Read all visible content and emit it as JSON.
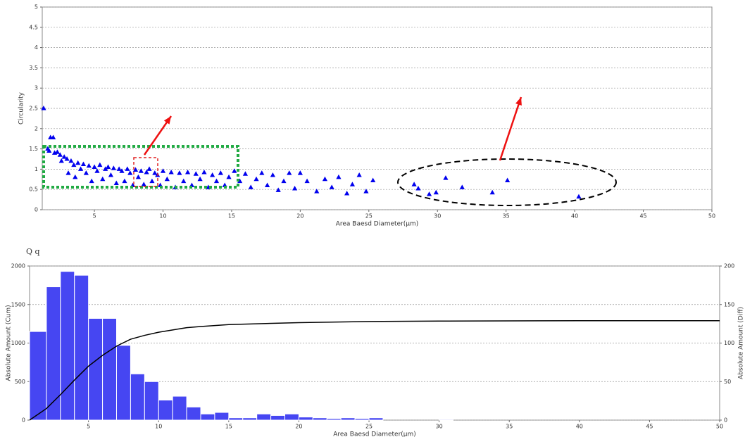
{
  "chart_data": [
    {
      "type": "scatter",
      "x_label": "Area Baesd Diameter(μm)",
      "y_label": "Circularity",
      "color": "#0000ee",
      "grid": true,
      "xlim": [
        1.2,
        50
      ],
      "xticks": [
        5,
        10,
        15,
        20,
        25,
        30,
        35,
        40,
        45,
        50
      ],
      "ylim": [
        0,
        5
      ],
      "yticks": [
        0,
        0.5,
        1,
        1.5,
        2,
        2.5,
        3,
        3.5,
        4,
        4.5,
        5
      ],
      "x": [
        1.3,
        1.8,
        2.0,
        1.6,
        1.7,
        2.1,
        2.3,
        2.5,
        2.6,
        2.8,
        3.0,
        3.1,
        3.3,
        3.5,
        3.6,
        3.8,
        4.0,
        4.2,
        4.4,
        4.6,
        4.8,
        5.0,
        5.2,
        5.4,
        5.6,
        5.8,
        6.0,
        6.2,
        6.4,
        6.6,
        6.8,
        7.0,
        7.2,
        7.4,
        7.6,
        7.8,
        8.0,
        8.2,
        8.4,
        8.6,
        8.8,
        9.0,
        9.2,
        9.4,
        9.6,
        9.8,
        10.0,
        10.3,
        10.6,
        10.9,
        11.2,
        11.5,
        11.8,
        12.1,
        12.4,
        12.7,
        13.0,
        13.3,
        13.6,
        13.9,
        14.2,
        14.5,
        14.8,
        15.2,
        15.6,
        16.0,
        16.4,
        16.8,
        17.2,
        17.6,
        18.0,
        18.4,
        18.8,
        19.2,
        19.6,
        20.0,
        20.5,
        21.2,
        21.8,
        22.3,
        22.8,
        23.4,
        23.8,
        24.3,
        24.8,
        25.3,
        28.3,
        28.6,
        29.4,
        29.9,
        30.6,
        31.8,
        34.0,
        35.1,
        40.3
      ],
      "values": [
        2.5,
        1.78,
        1.78,
        1.5,
        1.45,
        1.4,
        1.42,
        1.35,
        1.2,
        1.3,
        1.25,
        0.9,
        1.2,
        1.1,
        0.8,
        1.15,
        1.0,
        1.12,
        0.9,
        1.08,
        0.7,
        1.05,
        0.95,
        1.1,
        0.75,
        1.0,
        1.05,
        0.85,
        1.02,
        0.65,
        1.0,
        0.95,
        0.7,
        1.0,
        0.9,
        0.6,
        0.98,
        0.8,
        0.95,
        0.62,
        0.92,
        1.0,
        0.7,
        0.9,
        0.85,
        0.6,
        0.95,
        0.75,
        0.92,
        0.55,
        0.9,
        0.7,
        0.92,
        0.6,
        0.88,
        0.75,
        0.92,
        0.55,
        0.85,
        0.7,
        0.9,
        0.6,
        0.8,
        0.95,
        0.7,
        0.88,
        0.55,
        0.75,
        0.9,
        0.6,
        0.85,
        0.48,
        0.7,
        0.9,
        0.52,
        0.9,
        0.7,
        0.45,
        0.75,
        0.55,
        0.8,
        0.4,
        0.62,
        0.85,
        0.45,
        0.72,
        0.62,
        0.52,
        0.38,
        0.42,
        0.78,
        0.55,
        0.42,
        0.72,
        0.32
      ]
    },
    {
      "type": "histogram",
      "title": "Q q",
      "x_label": "Area Baesd Diameter(μm)",
      "y_label": "Absolute Amount (Cum)",
      "y2_label": "Absolute Amount (Diff)",
      "grid": true,
      "xlim": [
        0.8,
        50
      ],
      "xticks": [
        5,
        10,
        15,
        20,
        25,
        30,
        35,
        40,
        45,
        50
      ],
      "ylim": [
        0,
        2000
      ],
      "yticks": [
        0,
        500,
        1000,
        1500,
        2000
      ],
      "y2lim": [
        0,
        200
      ],
      "y2ticks": [
        0,
        50,
        100,
        150,
        200
      ],
      "bins": [
        0.8,
        2,
        3,
        4,
        5,
        6,
        7,
        8,
        9,
        10,
        11,
        12,
        13,
        14,
        15,
        16,
        17,
        18,
        19,
        20,
        21,
        22,
        23,
        24,
        25,
        26,
        27,
        28,
        29,
        30,
        31
      ],
      "series": [
        {
          "type": "histogram",
          "axis": "y2",
          "color": "#4646f2",
          "values": [
            115,
            173,
            193,
            188,
            132,
            132,
            97,
            60,
            50,
            26,
            31,
            17,
            8,
            10,
            3,
            3,
            8,
            6,
            8,
            4,
            3,
            2,
            3,
            2,
            3,
            0,
            0,
            0,
            0,
            1
          ]
        },
        {
          "type": "line",
          "color": "#000000",
          "x": [
            0.8,
            2,
            3,
            4,
            5,
            6,
            7,
            8,
            9,
            10,
            11,
            12,
            13,
            15,
            20,
            25,
            30,
            40,
            50
          ],
          "values": [
            0,
            150,
            330,
            520,
            700,
            840,
            960,
            1050,
            1100,
            1140,
            1170,
            1200,
            1215,
            1240,
            1265,
            1280,
            1285,
            1290,
            1290
          ]
        }
      ]
    }
  ]
}
